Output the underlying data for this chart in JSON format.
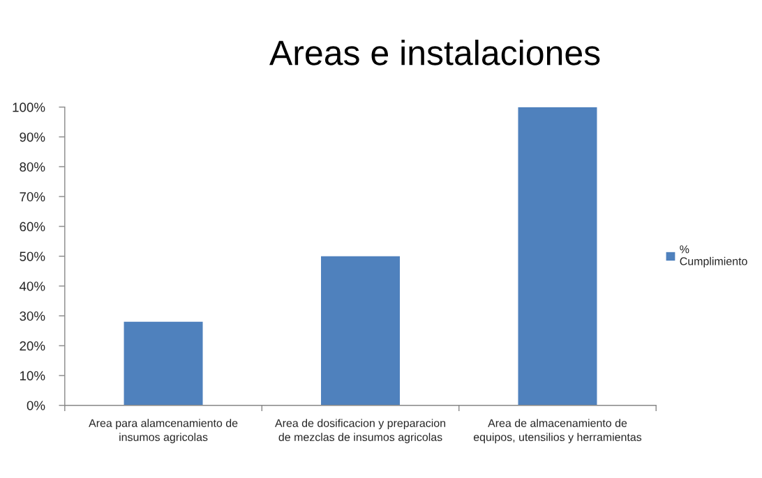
{
  "chart_data": {
    "type": "bar",
    "title": "Areas e instalaciones",
    "categories": [
      "Area para alamcenamiento de insumos agricolas",
      "Area de dosificacion y preparacion de mezclas de insumos agricolas",
      "Area de almacenamiento de equipos, utensilios y herramientas"
    ],
    "series": [
      {
        "name": "% Cumplimiento",
        "color": "#4f81bd",
        "values": [
          28,
          50,
          100
        ]
      }
    ],
    "ylim": [
      0,
      100
    ],
    "yticks": [
      {
        "value": 0,
        "label": "0%"
      },
      {
        "value": 10,
        "label": "10%"
      },
      {
        "value": 20,
        "label": "20%"
      },
      {
        "value": 30,
        "label": "30%"
      },
      {
        "value": 40,
        "label": "40%"
      },
      {
        "value": 50,
        "label": "50%"
      },
      {
        "value": 60,
        "label": "60%"
      },
      {
        "value": 70,
        "label": "70%"
      },
      {
        "value": 80,
        "label": "80%"
      },
      {
        "value": 90,
        "label": "90%"
      },
      {
        "value": 100,
        "label": "100%"
      }
    ],
    "legend": "right"
  }
}
